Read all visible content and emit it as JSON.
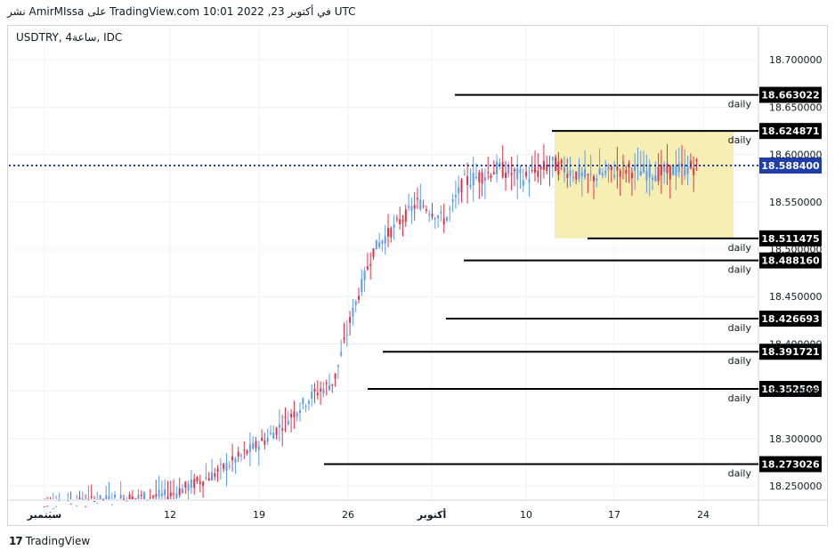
{
  "header": {
    "publish_text": "نشر AmirMIssa على TradingView.com 10:01 2022 ,23 في أكتوبر UTC"
  },
  "symbol": {
    "label": "USDTRY, 4ساعة, IDC"
  },
  "footer": {
    "brand": "TradingView",
    "logo_icon": "tradingview-logo-icon"
  },
  "colors": {
    "up": "#5b9cf6",
    "down": "#e0324a",
    "highlight_box": "#f5eba6",
    "last_price_line": "#1f3ea8",
    "level_line": "#000000"
  },
  "chart_data": {
    "type": "candlestick",
    "ylim": [
      18.235,
      18.735
    ],
    "y_ticks": [
      "18.250000",
      "18.300000",
      "18.350000",
      "18.400000",
      "18.450000",
      "18.500000",
      "18.550000",
      "18.600000",
      "18.650000",
      "18.700000"
    ],
    "x_ticks": [
      "سبتمبر",
      "12",
      "19",
      "26",
      "أكتوبر",
      "10",
      "17",
      "24"
    ],
    "last_price": "18.588400",
    "levels": [
      {
        "value": 18.663022,
        "label": "18.663022",
        "tag": "daily"
      },
      {
        "value": 18.624871,
        "label": "18.624871",
        "tag": "daily"
      },
      {
        "value": 18.511475,
        "label": "18.511475",
        "tag": "daily"
      },
      {
        "value": 18.48816,
        "label": "18.488160",
        "tag": "daily"
      },
      {
        "value": 18.426693,
        "label": "18.426693",
        "tag": "daily"
      },
      {
        "value": 18.391721,
        "label": "18.391721",
        "tag": "daily"
      },
      {
        "value": 18.352509,
        "label": "18.352509",
        "tag": "daily"
      },
      {
        "value": 18.273026,
        "label": "18.273026",
        "tag": "daily"
      }
    ],
    "consolidation_zone": {
      "from": "Oct 12",
      "to": "Oct 26",
      "high": 18.624871,
      "low": 18.511475
    },
    "grid": true,
    "price_axis": "right"
  }
}
